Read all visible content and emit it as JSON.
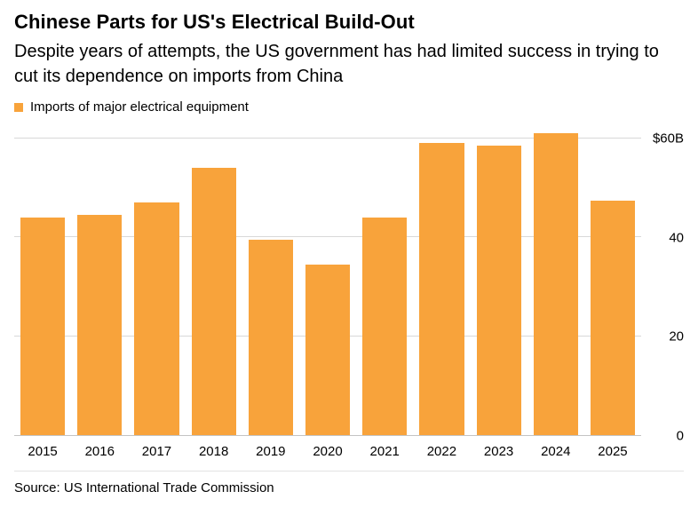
{
  "header": {
    "title": "Chinese Parts for US's Electrical Build-Out",
    "subtitle": "Despite years of attempts, the US government has had limited success in trying to cut its dependence on imports from China"
  },
  "legend": {
    "label": "Imports of major electrical equipment",
    "color": "#F8A33B"
  },
  "chart_data": {
    "type": "bar",
    "title": "Chinese Parts for US's Electrical Build-Out",
    "categories": [
      "2015",
      "2016",
      "2017",
      "2018",
      "2019",
      "2020",
      "2021",
      "2022",
      "2023",
      "2024",
      "2025"
    ],
    "values": [
      44,
      44.5,
      47,
      54,
      39.5,
      34.5,
      44,
      59,
      58.5,
      61,
      47.5
    ],
    "unit": "$B",
    "xlabel": "",
    "ylabel": "",
    "ylim": [
      0,
      63
    ],
    "yticks": [
      0,
      20,
      40,
      60
    ],
    "ytick_labels": [
      "0",
      "20",
      "40",
      "$60B"
    ],
    "bar_color": "#F8A33B",
    "grid": true,
    "legend_position": "top-left"
  },
  "footer": {
    "source": "Source: US International Trade Commission"
  }
}
